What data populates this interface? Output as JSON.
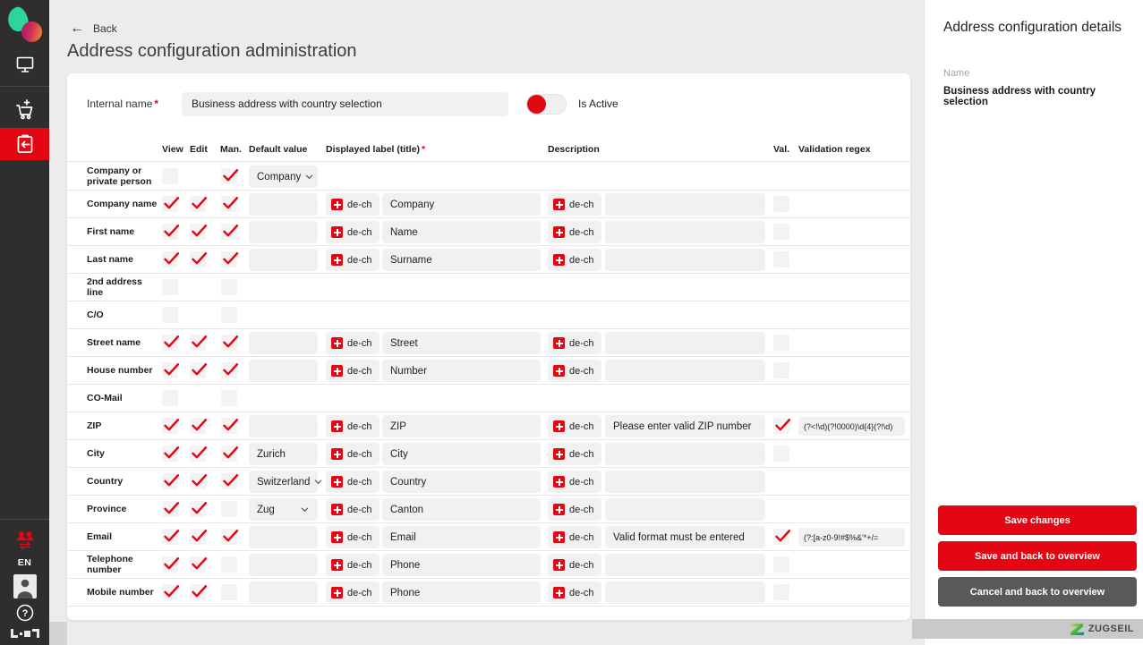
{
  "sidebar": {
    "language": "EN"
  },
  "header": {
    "back_label": "Back",
    "title": "Address configuration administration"
  },
  "form": {
    "internal_name_label": "Internal name",
    "required_mark": "*",
    "internal_name_value": "Business address with country selection",
    "is_active_label": "Is Active"
  },
  "table": {
    "locale": "de-ch",
    "required_mark": "*",
    "columns": {
      "view": "View",
      "edit": "Edit",
      "man": "Man.",
      "default": "Default value",
      "label": "Displayed label (title)",
      "description": "Description",
      "val": "Val.",
      "regex": "Validation regex"
    },
    "rows": [
      {
        "name": "Company or private person",
        "view": "unchecked",
        "edit": "none",
        "man": "checked",
        "default": {
          "type": "select",
          "value": "Company"
        },
        "label": null,
        "description": null,
        "val": "none",
        "regex": null
      },
      {
        "name": "Company name",
        "view": "checked",
        "edit": "checked",
        "man": "checked",
        "default": {
          "type": "input",
          "value": ""
        },
        "label": "Company",
        "description": "",
        "val": "unchecked",
        "regex": null
      },
      {
        "name": "First name",
        "view": "checked",
        "edit": "checked",
        "man": "checked",
        "default": {
          "type": "input",
          "value": ""
        },
        "label": "Name",
        "description": "",
        "val": "unchecked",
        "regex": null
      },
      {
        "name": "Last name",
        "view": "checked",
        "edit": "checked",
        "man": "checked",
        "default": {
          "type": "input",
          "value": ""
        },
        "label": "Surname",
        "description": "",
        "val": "unchecked",
        "regex": null
      },
      {
        "name": "2nd address line",
        "view": "unchecked",
        "edit": "none",
        "man": "unchecked",
        "default": {
          "type": "none",
          "value": ""
        },
        "label": null,
        "description": null,
        "val": "none",
        "regex": null
      },
      {
        "name": "C/O",
        "view": "unchecked",
        "edit": "none",
        "man": "unchecked",
        "default": {
          "type": "none",
          "value": ""
        },
        "label": null,
        "description": null,
        "val": "none",
        "regex": null
      },
      {
        "name": "Street name",
        "view": "checked",
        "edit": "checked",
        "man": "checked",
        "default": {
          "type": "input",
          "value": ""
        },
        "label": "Street",
        "description": "",
        "val": "unchecked",
        "regex": null
      },
      {
        "name": "House number",
        "view": "checked",
        "edit": "checked",
        "man": "checked",
        "default": {
          "type": "input",
          "value": ""
        },
        "label": "Number",
        "description": "",
        "val": "unchecked",
        "regex": null
      },
      {
        "name": "CO-Mail",
        "view": "unchecked",
        "edit": "none",
        "man": "unchecked",
        "default": {
          "type": "none",
          "value": ""
        },
        "label": null,
        "description": null,
        "val": "none",
        "regex": null
      },
      {
        "name": "ZIP",
        "view": "checked",
        "edit": "checked",
        "man": "checked",
        "default": {
          "type": "input",
          "value": ""
        },
        "label": "ZIP",
        "description": "Please enter valid ZIP number",
        "val": "checked",
        "regex": "(?<!\\d)(?!0000)\\d{4}(?!\\d)"
      },
      {
        "name": "City",
        "view": "checked",
        "edit": "checked",
        "man": "checked",
        "default": {
          "type": "input",
          "value": "Zurich"
        },
        "label": "City",
        "description": "",
        "val": "unchecked",
        "regex": null
      },
      {
        "name": "Country",
        "view": "checked",
        "edit": "checked",
        "man": "checked",
        "default": {
          "type": "select",
          "value": "Switzerland"
        },
        "label": "Country",
        "description": "",
        "val": "none",
        "regex": null
      },
      {
        "name": "Province",
        "view": "checked",
        "edit": "checked",
        "man": "unchecked",
        "default": {
          "type": "select",
          "value": "Zug"
        },
        "label": "Canton",
        "description": "",
        "val": "none",
        "regex": null
      },
      {
        "name": "Email",
        "view": "checked",
        "edit": "checked",
        "man": "checked",
        "default": {
          "type": "input",
          "value": ""
        },
        "label": "Email",
        "description": "Valid format must be entered",
        "val": "checked",
        "regex": "(?:[a-z0-9!#$%&'*+/="
      },
      {
        "name": "Telephone number",
        "view": "checked",
        "edit": "checked",
        "man": "unchecked",
        "default": {
          "type": "input",
          "value": ""
        },
        "label": "Phone",
        "description": "",
        "val": "unchecked",
        "regex": null
      },
      {
        "name": "Mobile number",
        "view": "checked",
        "edit": "checked",
        "man": "unchecked",
        "default": {
          "type": "input",
          "value": ""
        },
        "label": "Phone",
        "description": "",
        "val": "unchecked",
        "regex": null
      }
    ]
  },
  "details": {
    "title": "Address configuration details",
    "name_label": "Name",
    "name_value": "Business address with country selection",
    "buttons": [
      "Save changes",
      "Save and back to overview",
      "Cancel and back to overview"
    ]
  },
  "footer": {
    "brand": "ZUGSEIL"
  }
}
